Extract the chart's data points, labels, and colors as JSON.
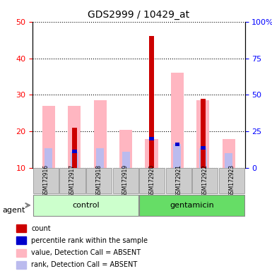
{
  "title": "GDS2999 / 10429_at",
  "samples": [
    "GSM172916",
    "GSM172917",
    "GSM172918",
    "GSM172919",
    "GSM172920",
    "GSM172921",
    "GSM172922",
    "GSM172923"
  ],
  "groups": [
    "control",
    "control",
    "control",
    "control",
    "gentamicin",
    "gentamicin",
    "gentamicin",
    "gentamicin"
  ],
  "red_bars": [
    0,
    21,
    0,
    0,
    46,
    0,
    29,
    0
  ],
  "blue_bars": [
    0,
    14.5,
    0,
    0,
    18,
    16.5,
    15.5,
    0
  ],
  "pink_bars": [
    27,
    27,
    28.5,
    20.5,
    18,
    36,
    28.5,
    18
  ],
  "lavender_bars": [
    15.5,
    14.5,
    15.5,
    14.5,
    0,
    16.5,
    15.5,
    14
  ],
  "ylim": [
    10,
    50
  ],
  "yticks_left": [
    10,
    20,
    30,
    40,
    50
  ],
  "yticks_right": [
    0,
    25,
    50,
    75,
    100
  ],
  "colors": {
    "red": "#CC0000",
    "blue": "#0000CC",
    "pink": "#FFB6C1",
    "lavender": "#BBBBEE",
    "control_bg": "#CCFFCC",
    "gentamicin_bg": "#66DD66",
    "sample_bg": "#CCCCCC"
  },
  "legend_items": [
    {
      "label": "count",
      "color": "#CC0000"
    },
    {
      "label": "percentile rank within the sample",
      "color": "#0000CC"
    },
    {
      "label": "value, Detection Call = ABSENT",
      "color": "#FFB6C1"
    },
    {
      "label": "rank, Detection Call = ABSENT",
      "color": "#BBBBEE"
    }
  ]
}
